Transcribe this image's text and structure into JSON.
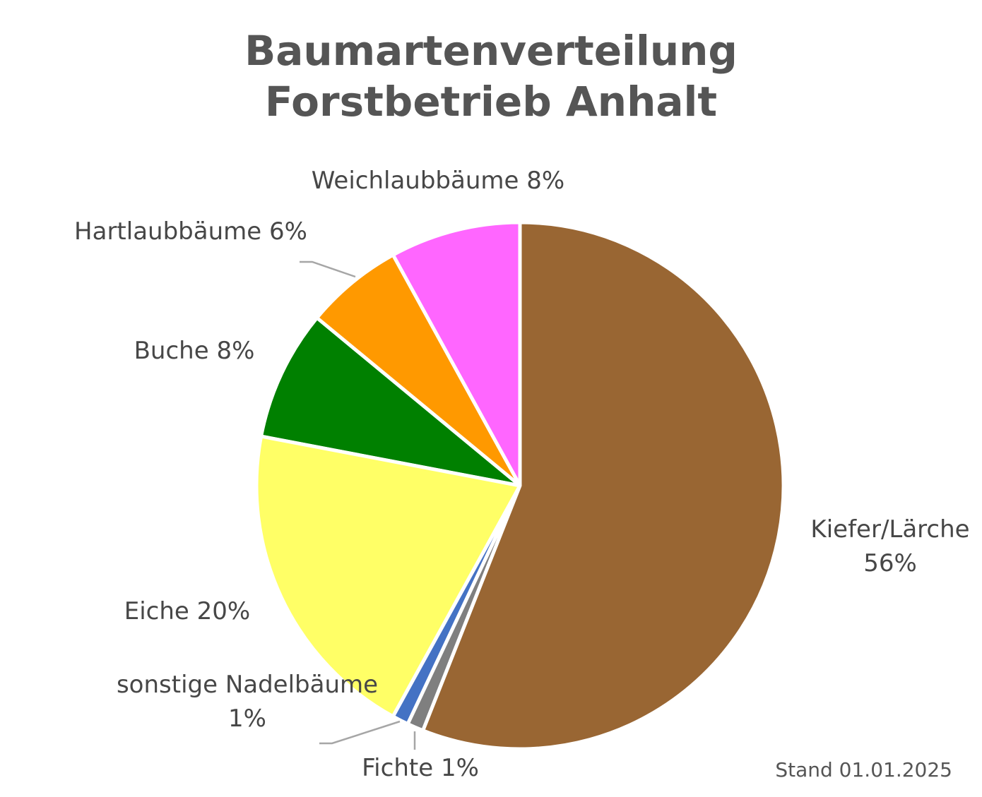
{
  "chart_data": {
    "type": "pie",
    "title": "Baumartenverteilung Forstbetrieb Anhalt",
    "categories": [
      "Kiefer/Lärche",
      "Fichte",
      "sonstige Nadelbäume",
      "Eiche",
      "Buche",
      "Hartlaubbäume",
      "Weichlaubbäume"
    ],
    "values": [
      56,
      1,
      1,
      20,
      8,
      6,
      8
    ],
    "value_labels": [
      "56%",
      "1%",
      "1%",
      "20%",
      "8%",
      "6%",
      "8%"
    ],
    "colors": [
      "#996633",
      "#7f7f7f",
      "#4472c4",
      "#ffff66",
      "#008000",
      "#ff9900",
      "#ff66ff"
    ],
    "note": "Stand 01.01.2025"
  }
}
